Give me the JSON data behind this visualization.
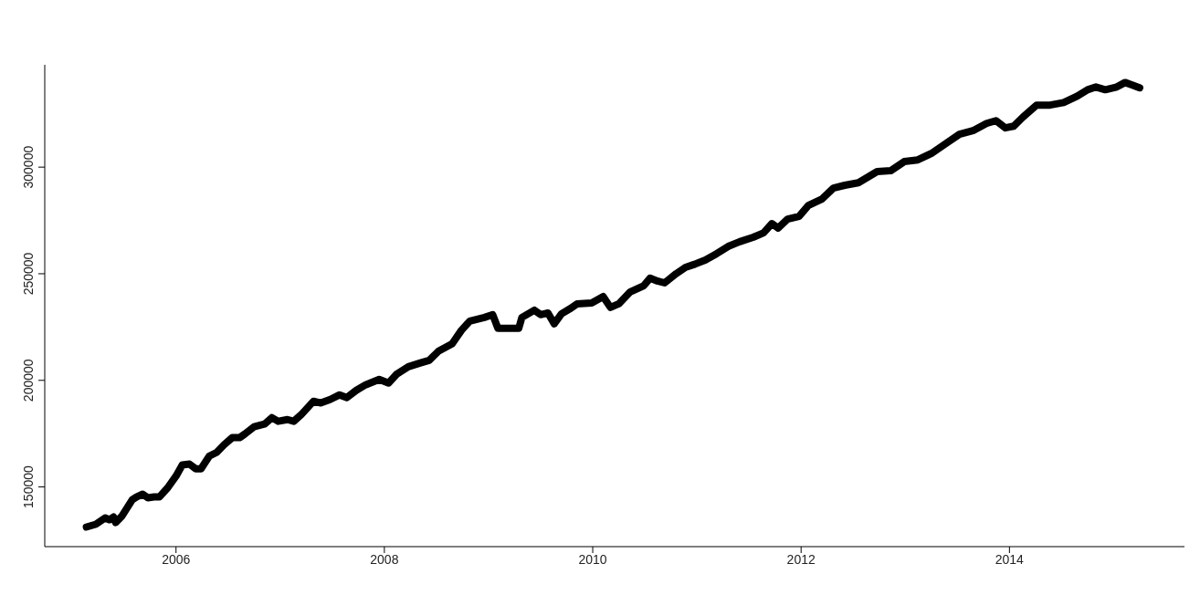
{
  "chart_data": {
    "type": "line",
    "x": [
      2005.14,
      2005.23,
      2005.32,
      2005.36,
      2005.4,
      2005.42,
      2005.48,
      2005.58,
      2005.62,
      2005.68,
      2005.73,
      2005.79,
      2005.84,
      2005.92,
      2006.0,
      2006.06,
      2006.13,
      2006.19,
      2006.24,
      2006.32,
      2006.39,
      2006.46,
      2006.54,
      2006.61,
      2006.66,
      2006.75,
      2006.85,
      2006.92,
      2006.98,
      2007.07,
      2007.13,
      2007.2,
      2007.32,
      2007.39,
      2007.48,
      2007.57,
      2007.64,
      2007.73,
      2007.82,
      2007.95,
      2008.04,
      2008.12,
      2008.23,
      2008.34,
      2008.43,
      2008.52,
      2008.65,
      2008.74,
      2008.82,
      2008.96,
      2009.04,
      2009.09,
      2009.18,
      2009.29,
      2009.32,
      2009.44,
      2009.5,
      2009.57,
      2009.63,
      2009.7,
      2009.79,
      2009.85,
      2009.99,
      2010.1,
      2010.17,
      2010.25,
      2010.36,
      2010.49,
      2010.55,
      2010.62,
      2010.69,
      2010.8,
      2010.89,
      2010.97,
      2011.08,
      2011.19,
      2011.3,
      2011.41,
      2011.54,
      2011.64,
      2011.72,
      2011.78,
      2011.87,
      2011.98,
      2012.07,
      2012.2,
      2012.31,
      2012.42,
      2012.55,
      2012.73,
      2012.86,
      2012.99,
      2013.12,
      2013.25,
      2013.39,
      2013.52,
      2013.65,
      2013.78,
      2013.87,
      2013.96,
      2014.04,
      2014.13,
      2014.26,
      2014.39,
      2014.52,
      2014.65,
      2014.75,
      2014.83,
      2014.92,
      2015.03,
      2015.11,
      2015.18,
      2015.25
    ],
    "series": [
      {
        "color": "#000000",
        "values": [
          131200,
          132500,
          135500,
          134600,
          135900,
          133300,
          136300,
          144000,
          145300,
          146600,
          144900,
          145300,
          145300,
          149600,
          155100,
          160300,
          160700,
          158500,
          158500,
          164500,
          166200,
          169700,
          173100,
          173100,
          174800,
          178200,
          179500,
          182500,
          180800,
          181600,
          180800,
          183800,
          190200,
          189400,
          191000,
          193200,
          191900,
          195300,
          197900,
          200400,
          198700,
          203000,
          206400,
          208100,
          209400,
          213700,
          217100,
          223500,
          227800,
          229500,
          230800,
          224400,
          224400,
          224400,
          229500,
          232900,
          230800,
          231600,
          226500,
          231200,
          233800,
          235900,
          236300,
          239300,
          234200,
          235900,
          241500,
          244400,
          247900,
          246600,
          245700,
          250000,
          253000,
          254300,
          256400,
          259400,
          262800,
          265000,
          267100,
          269200,
          273500,
          271400,
          275600,
          276900,
          282000,
          285000,
          290200,
          291500,
          292700,
          297900,
          298300,
          302600,
          303400,
          306400,
          311100,
          315400,
          317100,
          320500,
          321800,
          318400,
          319200,
          323500,
          329100,
          329100,
          330300,
          333300,
          336300,
          337600,
          336300,
          337600,
          339700,
          338500,
          337200
        ]
      }
    ],
    "xlim": [
      2004.74,
      2015.68
    ],
    "xticks": [
      2006,
      2008,
      2010,
      2012,
      2014
    ],
    "ylim": [
      122000,
      348000
    ],
    "yticks": [
      150000,
      200000,
      250000,
      300000
    ],
    "grid": false,
    "legend": false,
    "marker": "none",
    "line_style": "solid"
  }
}
